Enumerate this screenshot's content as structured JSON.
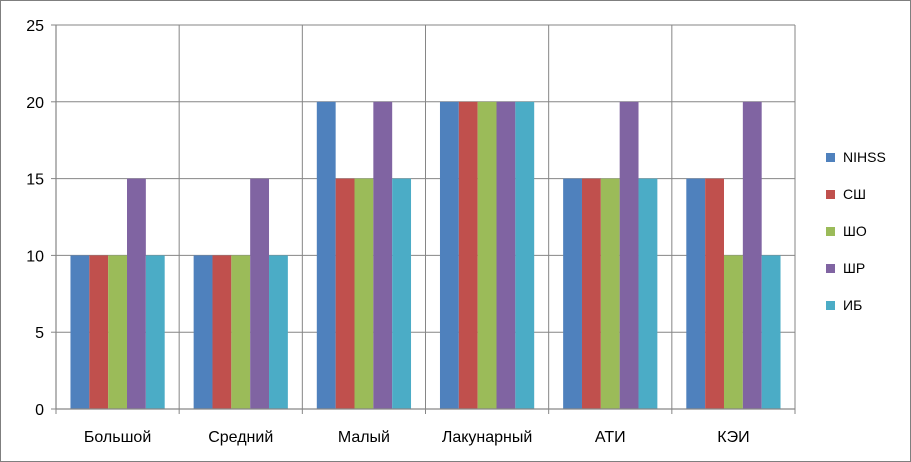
{
  "chart_data": {
    "type": "bar",
    "categories": [
      "Большой",
      "Средний",
      "Малый",
      "Лакунарный",
      "АТИ",
      "КЭИ"
    ],
    "series": [
      {
        "name": "NIHSS",
        "color": "#4f81bd",
        "values": [
          10,
          10,
          20,
          20,
          15,
          15
        ]
      },
      {
        "name": "СШ",
        "color": "#c0504d",
        "values": [
          10,
          10,
          15,
          20,
          15,
          15
        ]
      },
      {
        "name": "ШО",
        "color": "#9bbb59",
        "values": [
          10,
          10,
          15,
          20,
          15,
          10
        ]
      },
      {
        "name": "ШР",
        "color": "#8064a2",
        "values": [
          15,
          15,
          20,
          20,
          20,
          20
        ]
      },
      {
        "name": "ИБ",
        "color": "#4bacc6",
        "values": [
          10,
          10,
          15,
          20,
          15,
          10
        ]
      }
    ],
    "yticks": [
      0,
      5,
      10,
      15,
      20,
      25
    ],
    "ylim": [
      0,
      25
    ],
    "grid": true,
    "legend_position": "right",
    "title": "",
    "xlabel": "",
    "ylabel": ""
  }
}
